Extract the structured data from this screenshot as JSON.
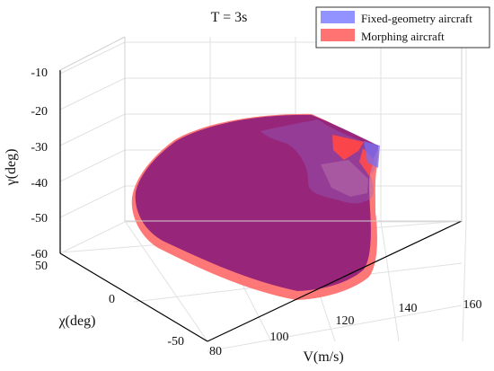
{
  "chart_data": {
    "type": "area",
    "title": "T = 3s",
    "xlabel": "V(m/s)",
    "ylabel": "χ(deg)",
    "zlabel": "γ(deg)",
    "xlim": [
      80,
      160
    ],
    "ylim": [
      -50,
      50
    ],
    "zlim": [
      -60,
      -10
    ],
    "x_ticks": [
      "80",
      "100",
      "120",
      "140",
      "160"
    ],
    "y_ticks": [
      "-50",
      "0",
      "50"
    ],
    "z_ticks": [
      "-60",
      "-50",
      "-40",
      "-30",
      "-20",
      "-10"
    ],
    "grid": true,
    "legend_position": "top-right",
    "series": [
      {
        "name": "Fixed-geometry aircraft",
        "color": "#8080ff",
        "opacity": 0.75
      },
      {
        "name": "Morphing aircraft",
        "color": "#ff5a5a",
        "opacity": 0.75
      }
    ]
  },
  "colors": {
    "axis": "#000000",
    "grid": "#e1e1e1",
    "purple_overlap": "#8e1f7c"
  }
}
